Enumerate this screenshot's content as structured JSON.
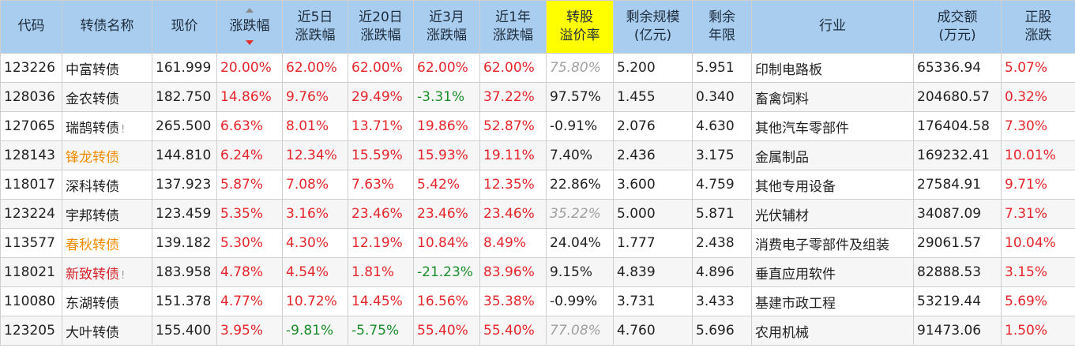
{
  "headers": [
    {
      "line1": "代码",
      "line2": ""
    },
    {
      "line1": "转债名称",
      "line2": ""
    },
    {
      "line1": "现价",
      "line2": ""
    },
    {
      "line1": "涨跌幅",
      "line2": ""
    },
    {
      "line1": "近5日",
      "line2": "涨跌幅"
    },
    {
      "line1": "近20日",
      "line2": "涨跌幅"
    },
    {
      "line1": "近3月",
      "line2": "涨跌幅"
    },
    {
      "line1": "近1年",
      "line2": "涨跌幅"
    },
    {
      "line1": "转股",
      "line2": "溢价率"
    },
    {
      "line1": "剩余规模",
      "line2": "(亿元)"
    },
    {
      "line1": "剩余",
      "line2": "年限"
    },
    {
      "line1": "行业",
      "line2": ""
    },
    {
      "line1": "成交额",
      "line2": "(万元)"
    },
    {
      "line1": "正股",
      "line2": "涨跌"
    }
  ],
  "sort": {
    "column": "涨跌幅",
    "direction": "descending"
  },
  "rows": [
    {
      "code": "123226",
      "name": "中富转债",
      "name_color": "normal",
      "mark": "",
      "price": "161.999",
      "chg": "20.00%",
      "d5": "62.00%",
      "d20": "62.00%",
      "m3": "62.00%",
      "y1": "62.00%",
      "premium": "75.80%",
      "premium_style": "gray",
      "scale": "5.200",
      "years": "5.951",
      "industry": "印制电路板",
      "turnover": "65336.94",
      "stock_chg": "5.07%"
    },
    {
      "code": "128036",
      "name": "金农转债",
      "name_color": "normal",
      "mark": "",
      "price": "182.750",
      "chg": "14.86%",
      "d5": "9.76%",
      "d20": "29.49%",
      "m3": "-3.31%",
      "y1": "37.22%",
      "premium": "97.57%",
      "premium_style": "normal",
      "scale": "1.455",
      "years": "0.340",
      "industry": "畜禽饲料",
      "turnover": "204680.57",
      "stock_chg": "0.32%"
    },
    {
      "code": "127065",
      "name": "瑞鹄转债",
      "name_color": "normal",
      "mark": "!",
      "price": "265.500",
      "chg": "6.63%",
      "d5": "8.01%",
      "d20": "13.71%",
      "m3": "19.86%",
      "y1": "52.87%",
      "premium": "-0.91%",
      "premium_style": "normal",
      "scale": "2.076",
      "years": "4.630",
      "industry": "其他汽车零部件",
      "turnover": "176404.58",
      "stock_chg": "7.30%"
    },
    {
      "code": "128143",
      "name": "锋龙转债",
      "name_color": "orange",
      "mark": "",
      "price": "144.810",
      "chg": "6.24%",
      "d5": "12.34%",
      "d20": "15.59%",
      "m3": "15.93%",
      "y1": "19.11%",
      "premium": "7.40%",
      "premium_style": "normal",
      "scale": "2.436",
      "years": "3.175",
      "industry": "金属制品",
      "turnover": "169232.41",
      "stock_chg": "10.01%"
    },
    {
      "code": "118017",
      "name": "深科转债",
      "name_color": "normal",
      "mark": "",
      "price": "137.923",
      "chg": "5.87%",
      "d5": "7.08%",
      "d20": "7.63%",
      "m3": "5.42%",
      "y1": "12.35%",
      "premium": "22.86%",
      "premium_style": "normal",
      "scale": "3.600",
      "years": "4.759",
      "industry": "其他专用设备",
      "turnover": "27584.91",
      "stock_chg": "9.71%"
    },
    {
      "code": "123224",
      "name": "宇邦转债",
      "name_color": "normal",
      "mark": "",
      "price": "123.459",
      "chg": "5.35%",
      "d5": "3.16%",
      "d20": "23.46%",
      "m3": "23.46%",
      "y1": "23.46%",
      "premium": "35.22%",
      "premium_style": "gray",
      "scale": "5.000",
      "years": "5.871",
      "industry": "光伏辅材",
      "turnover": "34087.09",
      "stock_chg": "7.31%"
    },
    {
      "code": "113577",
      "name": "春秋转债",
      "name_color": "orange",
      "mark": "",
      "price": "139.182",
      "chg": "5.30%",
      "d5": "4.30%",
      "d20": "12.19%",
      "m3": "10.84%",
      "y1": "8.49%",
      "premium": "24.04%",
      "premium_style": "normal",
      "scale": "1.777",
      "years": "2.438",
      "industry": "消费电子零部件及组装",
      "turnover": "29061.57",
      "stock_chg": "10.04%"
    },
    {
      "code": "118021",
      "name": "新致转债",
      "name_color": "darkred",
      "mark": "!",
      "price": "183.958",
      "chg": "4.78%",
      "d5": "4.54%",
      "d20": "1.81%",
      "m3": "-21.23%",
      "y1": "83.96%",
      "premium": "9.15%",
      "premium_style": "normal",
      "scale": "4.839",
      "years": "4.896",
      "industry": "垂直应用软件",
      "turnover": "82888.53",
      "stock_chg": "3.15%"
    },
    {
      "code": "110080",
      "name": "东湖转债",
      "name_color": "normal",
      "mark": "",
      "price": "151.378",
      "chg": "4.77%",
      "d5": "10.72%",
      "d20": "14.45%",
      "m3": "16.56%",
      "y1": "35.38%",
      "premium": "-0.99%",
      "premium_style": "normal",
      "scale": "3.731",
      "years": "3.433",
      "industry": "基建市政工程",
      "turnover": "53219.44",
      "stock_chg": "5.69%"
    },
    {
      "code": "123205",
      "name": "大叶转债",
      "name_color": "normal",
      "mark": "",
      "price": "155.400",
      "chg": "3.95%",
      "d5": "-9.81%",
      "d20": "-5.75%",
      "m3": "55.40%",
      "y1": "55.40%",
      "premium": "77.08%",
      "premium_style": "gray",
      "scale": "4.760",
      "years": "5.696",
      "industry": "农用机械",
      "turnover": "91473.06",
      "stock_chg": "1.50%"
    }
  ]
}
